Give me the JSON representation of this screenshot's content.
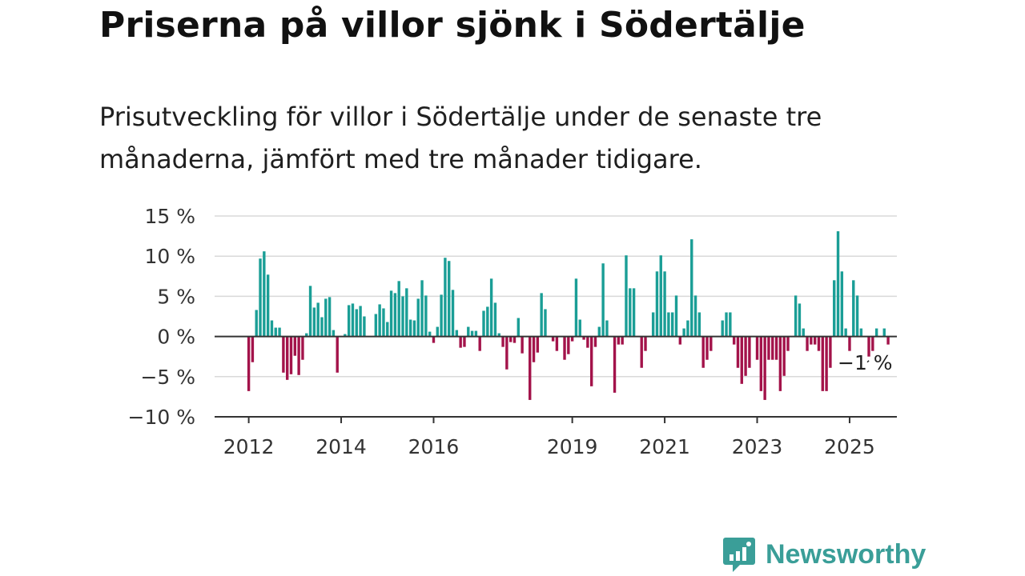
{
  "title": "Priserna på villor sjönk i Södertälje",
  "subtitle": "Prisutveckling för villor i Södertälje under de senaste tre månaderna, jämfört med tre månader tidigare.",
  "brand": {
    "name": "Newsworthy",
    "icon": "newsworthy-logo-icon",
    "color": "#3a9e98"
  },
  "chart_data": {
    "type": "bar",
    "x_start": "2012-01",
    "x_end": "2025-06",
    "ylim": [
      -10,
      15
    ],
    "y_ticks": [
      {
        "value": 15,
        "label": "15 %"
      },
      {
        "value": 10,
        "label": "10 %"
      },
      {
        "value": 5,
        "label": "5 %"
      },
      {
        "value": 0,
        "label": "0 %"
      },
      {
        "value": -5,
        "label": "−5 %"
      },
      {
        "value": -10,
        "label": "−10 %"
      }
    ],
    "x_ticks": [
      {
        "value": "2012-01",
        "label": "2012"
      },
      {
        "value": "2014-01",
        "label": "2014"
      },
      {
        "value": "2016-01",
        "label": "2016"
      },
      {
        "value": "2019-01",
        "label": "2019"
      },
      {
        "value": "2021-01",
        "label": "2021"
      },
      {
        "value": "2023-01",
        "label": "2023"
      },
      {
        "value": "2025-01",
        "label": "2025"
      }
    ],
    "grid": true,
    "positive_color": "#1a9e96",
    "negative_color": "#a3134a",
    "annotation": {
      "label": "−1 %",
      "value": -1
    },
    "values": [
      -6.8,
      -3.2,
      3.3,
      9.7,
      10.6,
      7.7,
      2.0,
      1.1,
      1.1,
      -4.5,
      -5.4,
      -4.7,
      -2.4,
      -4.8,
      -2.9,
      0.4,
      6.3,
      3.6,
      4.2,
      2.4,
      4.7,
      4.9,
      0.8,
      -4.5,
      0.0,
      0.3,
      3.9,
      4.1,
      3.4,
      3.8,
      2.5,
      0.0,
      0.0,
      2.8,
      4.0,
      3.5,
      1.8,
      5.7,
      5.4,
      6.9,
      5.0,
      6.0,
      2.1,
      2.0,
      4.7,
      7.0,
      5.1,
      0.6,
      -0.8,
      1.2,
      5.2,
      9.8,
      9.4,
      5.8,
      0.8,
      -1.4,
      -1.3,
      1.2,
      0.7,
      0.7,
      -1.8,
      3.2,
      3.7,
      7.2,
      4.2,
      0.4,
      -1.3,
      -4.1,
      -0.7,
      -0.8,
      2.3,
      -2.1,
      0.0,
      -7.9,
      -3.2,
      -2.0,
      5.4,
      3.4,
      0.0,
      -0.6,
      -1.8,
      0.0,
      -2.9,
      -2.2,
      -0.6,
      7.2,
      2.1,
      -0.4,
      -1.4,
      -6.2,
      -1.3,
      1.2,
      9.1,
      2.0,
      0.0,
      -7.0,
      -1.0,
      -1.0,
      10.1,
      6.0,
      6.0,
      0.0,
      -3.9,
      -1.8,
      0.0,
      3.0,
      8.1,
      10.1,
      8.1,
      3.0,
      3.0,
      5.1,
      -1.0,
      1.0,
      2.0,
      12.1,
      5.1,
      3.0,
      -3.9,
      -2.9,
      -1.8,
      0.0,
      0.0,
      2.0,
      3.0,
      3.0,
      -1.0,
      -3.9,
      -5.9,
      -4.9,
      -3.9,
      0.0,
      -2.9,
      -6.8,
      -7.9,
      -2.9,
      -2.9,
      -2.9,
      -6.8,
      -4.9,
      -1.8,
      0.0,
      5.1,
      4.1,
      1.0,
      -1.8,
      -1.0,
      -1.0,
      -1.8,
      -6.8,
      -6.8,
      -3.9,
      7.0,
      13.1,
      8.1,
      1.0,
      -1.8,
      7.0,
      5.1,
      1.0,
      0.0,
      -2.5,
      -1.8,
      1.0,
      0.0,
      1.0,
      -1.0
    ]
  }
}
